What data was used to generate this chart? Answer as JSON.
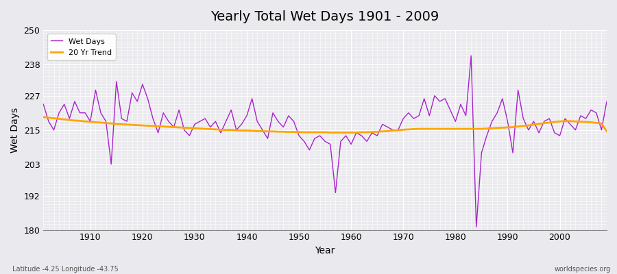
{
  "title": "Yearly Total Wet Days 1901 - 2009",
  "xlabel": "Year",
  "ylabel": "Wet Days",
  "footnote_left": "Latitude -4.25 Longitude -43.75",
  "footnote_right": "worldspecies.org",
  "ylim": [
    180,
    250
  ],
  "yticks": [
    180,
    192,
    203,
    215,
    227,
    238,
    250
  ],
  "wet_days_color": "#AA22CC",
  "trend_color": "#FFA500",
  "bg_color": "#EAEAEE",
  "xlim_left": 1901,
  "xlim_right": 2009,
  "years": [
    1901,
    1902,
    1903,
    1904,
    1905,
    1906,
    1907,
    1908,
    1909,
    1910,
    1911,
    1912,
    1913,
    1914,
    1915,
    1916,
    1917,
    1918,
    1919,
    1920,
    1921,
    1922,
    1923,
    1924,
    1925,
    1926,
    1927,
    1928,
    1929,
    1930,
    1931,
    1932,
    1933,
    1934,
    1935,
    1936,
    1937,
    1938,
    1939,
    1940,
    1941,
    1942,
    1943,
    1944,
    1945,
    1946,
    1947,
    1948,
    1949,
    1950,
    1951,
    1952,
    1953,
    1954,
    1955,
    1956,
    1957,
    1958,
    1959,
    1960,
    1961,
    1962,
    1963,
    1964,
    1965,
    1966,
    1967,
    1968,
    1969,
    1970,
    1971,
    1972,
    1973,
    1974,
    1975,
    1976,
    1977,
    1978,
    1979,
    1980,
    1981,
    1982,
    1983,
    1984,
    1985,
    1986,
    1987,
    1988,
    1989,
    1990,
    1991,
    1992,
    1993,
    1994,
    1995,
    1996,
    1997,
    1998,
    1999,
    2000,
    2001,
    2002,
    2003,
    2004,
    2005,
    2006,
    2007,
    2008,
    2009
  ],
  "wet_days": [
    224,
    218,
    215,
    221,
    224,
    219,
    225,
    221,
    221,
    218,
    229,
    221,
    218,
    203,
    232,
    219,
    218,
    228,
    225,
    231,
    226,
    219,
    214,
    221,
    218,
    216,
    222,
    215,
    213,
    217,
    218,
    219,
    216,
    218,
    214,
    218,
    222,
    215,
    217,
    220,
    226,
    218,
    215,
    212,
    221,
    218,
    216,
    220,
    218,
    213,
    211,
    208,
    212,
    213,
    211,
    210,
    193,
    211,
    213,
    210,
    214,
    213,
    211,
    214,
    213,
    217,
    216,
    215,
    215,
    219,
    221,
    219,
    220,
    226,
    220,
    227,
    225,
    226,
    222,
    218,
    224,
    220,
    241,
    181,
    207,
    213,
    218,
    221,
    226,
    218,
    207,
    229,
    219,
    215,
    218,
    214,
    218,
    219,
    214,
    213,
    219,
    217,
    215,
    220,
    219,
    222,
    221,
    215,
    225
  ],
  "trend": [
    219.5,
    219.3,
    219.1,
    218.9,
    218.7,
    218.5,
    218.3,
    218.2,
    218.0,
    217.9,
    217.7,
    217.6,
    217.4,
    217.3,
    217.1,
    217.0,
    216.9,
    216.8,
    216.7,
    216.6,
    216.5,
    216.4,
    216.3,
    216.2,
    216.1,
    216.0,
    215.9,
    215.8,
    215.7,
    215.6,
    215.5,
    215.4,
    215.3,
    215.2,
    215.1,
    215.0,
    215.0,
    214.9,
    214.8,
    214.8,
    214.7,
    214.6,
    214.6,
    214.5,
    214.5,
    214.4,
    214.4,
    214.3,
    214.3,
    214.3,
    214.2,
    214.2,
    214.2,
    214.2,
    214.2,
    214.1,
    214.1,
    214.1,
    214.1,
    214.1,
    214.1,
    214.2,
    214.2,
    214.3,
    214.4,
    214.5,
    214.6,
    214.8,
    214.9,
    215.1,
    215.2,
    215.3,
    215.4,
    215.4,
    215.4,
    215.4,
    215.4,
    215.4,
    215.4,
    215.4,
    215.4,
    215.4,
    215.4,
    215.4,
    215.4,
    215.5,
    215.6,
    215.7,
    215.8,
    215.9,
    216.0,
    216.2,
    216.4,
    216.6,
    216.9,
    217.1,
    217.4,
    217.6,
    217.8,
    218.0,
    218.1,
    218.1,
    218.0,
    217.9,
    217.8,
    217.7,
    217.5,
    217.3,
    214.5
  ]
}
